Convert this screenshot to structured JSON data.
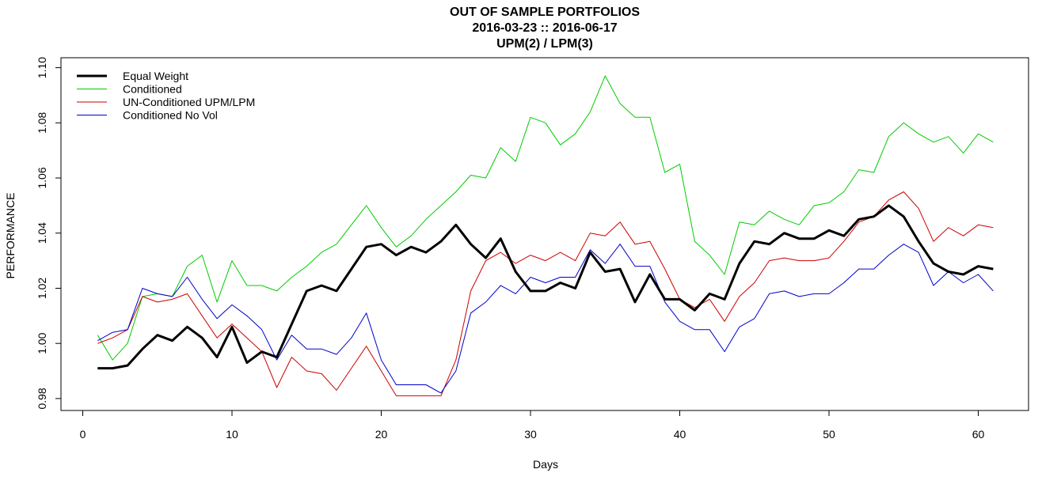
{
  "chart_data": {
    "type": "line",
    "title": "OUT OF SAMPLE PORTFOLIOS",
    "subtitle": "2016-03-23 :: 2016-06-17",
    "subtitle2": "UPM(2) / LPM(3)",
    "xlabel": "Days",
    "ylabel": "PERFORMANCE",
    "xlim": [
      0,
      65
    ],
    "ylim": [
      0.978,
      1.1
    ],
    "x_ticks": [
      "0",
      "10",
      "20",
      "30",
      "40",
      "50",
      "60"
    ],
    "y_ticks": [
      "0.98",
      "1.00",
      "1.02",
      "1.04",
      "1.06",
      "1.08",
      "1.10"
    ],
    "legend_position": "top-left",
    "x": [
      1,
      2,
      3,
      4,
      5,
      6,
      7,
      8,
      9,
      10,
      11,
      12,
      13,
      14,
      15,
      16,
      17,
      18,
      19,
      20,
      21,
      22,
      23,
      24,
      25,
      26,
      27,
      28,
      29,
      30,
      31,
      32,
      33,
      34,
      35,
      36,
      37,
      38,
      39,
      40,
      41,
      42,
      43,
      44,
      45,
      46,
      47,
      48,
      49,
      50,
      51,
      52,
      53,
      54,
      55,
      56,
      57,
      58,
      59,
      60,
      61
    ],
    "series": [
      {
        "name": "Equal Weight",
        "color": "#000000",
        "width": 3,
        "values": [
          0.991,
          0.991,
          0.992,
          0.998,
          1.003,
          1.001,
          1.006,
          1.002,
          0.995,
          1.006,
          0.993,
          0.997,
          0.995,
          1.007,
          1.019,
          1.021,
          1.019,
          1.027,
          1.035,
          1.036,
          1.032,
          1.035,
          1.033,
          1.037,
          1.043,
          1.036,
          1.031,
          1.038,
          1.026,
          1.019,
          1.019,
          1.022,
          1.02,
          1.033,
          1.026,
          1.027,
          1.015,
          1.025,
          1.016,
          1.016,
          1.012,
          1.018,
          1.016,
          1.029,
          1.037,
          1.036,
          1.04,
          1.038,
          1.038,
          1.041,
          1.039,
          1.045,
          1.046,
          1.05,
          1.046,
          1.037,
          1.029,
          1.026,
          1.025,
          1.028,
          1.027
        ]
      },
      {
        "name": "Conditioned",
        "color": "#00cc00",
        "width": 1,
        "values": [
          1.003,
          0.994,
          1.0,
          1.017,
          1.018,
          1.017,
          1.028,
          1.032,
          1.015,
          1.03,
          1.021,
          1.021,
          1.019,
          1.024,
          1.028,
          1.033,
          1.036,
          1.043,
          1.05,
          1.042,
          1.035,
          1.039,
          1.045,
          1.05,
          1.055,
          1.061,
          1.06,
          1.071,
          1.066,
          1.082,
          1.08,
          1.072,
          1.076,
          1.084,
          1.097,
          1.087,
          1.082,
          1.082,
          1.062,
          1.065,
          1.037,
          1.032,
          1.025,
          1.044,
          1.043,
          1.048,
          1.045,
          1.043,
          1.05,
          1.051,
          1.055,
          1.063,
          1.062,
          1.075,
          1.08,
          1.076,
          1.073,
          1.075,
          1.069,
          1.076,
          1.073
        ]
      },
      {
        "name": "UN-Conditioned UPM/LPM",
        "color": "#cc0000",
        "width": 1,
        "values": [
          1.0,
          1.002,
          1.005,
          1.017,
          1.015,
          1.016,
          1.018,
          1.01,
          1.002,
          1.007,
          1.002,
          0.997,
          0.984,
          0.995,
          0.99,
          0.989,
          0.983,
          0.991,
          0.999,
          0.99,
          0.981,
          0.981,
          0.981,
          0.981,
          0.994,
          1.019,
          1.03,
          1.033,
          1.029,
          1.032,
          1.03,
          1.033,
          1.03,
          1.04,
          1.039,
          1.044,
          1.036,
          1.037,
          1.027,
          1.016,
          1.013,
          1.016,
          1.008,
          1.017,
          1.022,
          1.03,
          1.031,
          1.03,
          1.03,
          1.031,
          1.037,
          1.044,
          1.046,
          1.052,
          1.055,
          1.049,
          1.037,
          1.042,
          1.039,
          1.043,
          1.042
        ]
      },
      {
        "name": "Conditioned No Vol",
        "color": "#0000cc",
        "width": 1,
        "values": [
          1.001,
          1.004,
          1.005,
          1.02,
          1.018,
          1.017,
          1.024,
          1.016,
          1.009,
          1.014,
          1.01,
          1.005,
          0.994,
          1.003,
          0.998,
          0.998,
          0.996,
          1.002,
          1.011,
          0.994,
          0.985,
          0.985,
          0.985,
          0.982,
          0.99,
          1.011,
          1.015,
          1.021,
          1.018,
          1.024,
          1.022,
          1.024,
          1.024,
          1.034,
          1.029,
          1.036,
          1.028,
          1.028,
          1.015,
          1.008,
          1.005,
          1.005,
          0.997,
          1.006,
          1.009,
          1.018,
          1.019,
          1.017,
          1.018,
          1.018,
          1.022,
          1.027,
          1.027,
          1.032,
          1.036,
          1.033,
          1.021,
          1.026,
          1.022,
          1.025,
          1.019
        ]
      }
    ]
  }
}
